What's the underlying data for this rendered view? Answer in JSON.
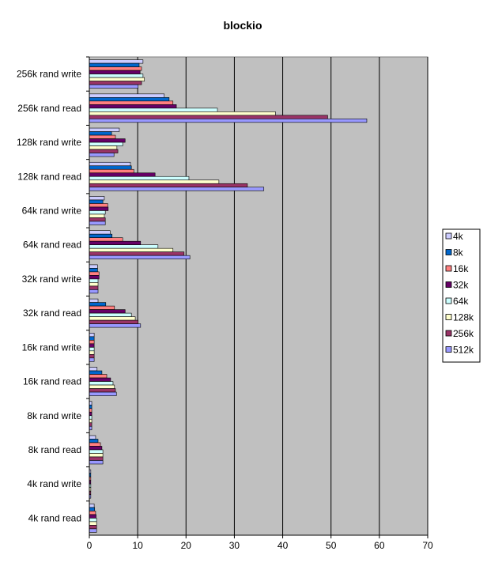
{
  "chart_data": {
    "type": "bar",
    "orientation": "horizontal",
    "title": "blockio",
    "xlabel": "",
    "ylabel": "",
    "xlim": [
      0,
      70
    ],
    "xticks": [
      0,
      10,
      20,
      30,
      40,
      50,
      60,
      70
    ],
    "grid": "vertical major",
    "legend_position": "right",
    "categories": [
      "4k rand read",
      "4k rand write",
      "8k rand read",
      "8k rand write",
      "16k rand read",
      "16k rand write",
      "32k rand read",
      "32k rand write",
      "64k rand read",
      "64k rand write",
      "128k rand read",
      "128k rand write",
      "256k rand read",
      "256k rand write"
    ],
    "series": [
      {
        "name": "4k",
        "color": "#CCCCFF",
        "values": [
          1.0,
          0.3,
          1.3,
          0.5,
          1.6,
          1.0,
          1.8,
          1.7,
          4.3,
          3.1,
          8.5,
          6.2,
          15.5,
          11.1
        ]
      },
      {
        "name": "8k",
        "color": "#0066CC",
        "values": [
          1.1,
          0.3,
          1.8,
          0.5,
          2.6,
          1.0,
          3.4,
          1.7,
          4.7,
          2.8,
          8.7,
          4.6,
          16.5,
          10.3
        ]
      },
      {
        "name": "16k",
        "color": "#FF8080",
        "values": [
          1.3,
          0.3,
          2.3,
          0.5,
          3.6,
          1.0,
          5.2,
          2.0,
          6.9,
          3.8,
          9.2,
          5.4,
          17.3,
          10.8
        ]
      },
      {
        "name": "32k",
        "color": "#660066",
        "values": [
          1.4,
          0.3,
          2.6,
          0.5,
          4.4,
          1.0,
          7.4,
          2.0,
          10.6,
          3.9,
          13.6,
          7.4,
          18.0,
          10.5
        ]
      },
      {
        "name": "64k",
        "color": "#CCFFFF",
        "values": [
          1.5,
          0.3,
          2.8,
          0.5,
          4.9,
          1.0,
          8.7,
          1.8,
          14.2,
          3.3,
          20.6,
          6.9,
          26.5,
          11.1
        ]
      },
      {
        "name": "128k",
        "color": "#FFFFCC",
        "values": [
          1.5,
          0.3,
          2.8,
          0.5,
          5.2,
          1.0,
          9.5,
          1.8,
          17.3,
          3.1,
          26.8,
          5.7,
          38.5,
          11.4
        ]
      },
      {
        "name": "256k",
        "color": "#993366",
        "values": [
          1.5,
          0.3,
          2.8,
          0.5,
          5.4,
          1.0,
          10.1,
          1.8,
          19.6,
          3.3,
          32.7,
          5.9,
          49.3,
          10.8
        ]
      },
      {
        "name": "512k",
        "color": "#9999FF",
        "values": [
          1.5,
          0.3,
          2.8,
          0.5,
          5.6,
          1.0,
          10.6,
          1.8,
          20.8,
          3.3,
          36.1,
          5.1,
          57.4,
          10.1
        ]
      }
    ]
  }
}
